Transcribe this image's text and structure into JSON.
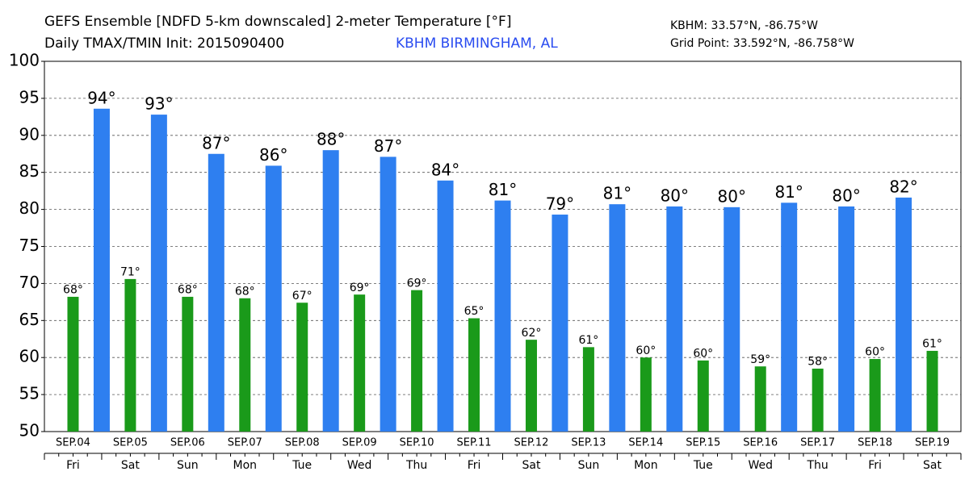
{
  "chart_data": {
    "type": "bar",
    "title": "GEFS Ensemble [NDFD 5-km downscaled] 2-meter Temperature [°F]",
    "subtitle": "Daily TMAX/TMIN Init: 2015090400",
    "station": "KBHM BIRMINGHAM, AL",
    "station_coords": "KBHM: 33.57°N, -86.75°W",
    "grid_point": "Grid Point: 33.592°N, -86.758°W",
    "categories": [
      "SEP.04",
      "SEP.05",
      "SEP.06",
      "SEP.07",
      "SEP.08",
      "SEP.09",
      "SEP.10",
      "SEP.11",
      "SEP.12",
      "SEP.13",
      "SEP.14",
      "SEP.15",
      "SEP.16",
      "SEP.17",
      "SEP.18",
      "SEP.19"
    ],
    "weekdays": [
      "Fri",
      "Sat",
      "Sun",
      "Mon",
      "Tue",
      "Wed",
      "Thu",
      "Fri",
      "Sat",
      "Sun",
      "Mon",
      "Tue",
      "Wed",
      "Thu",
      "Fri",
      "Sat"
    ],
    "series": [
      {
        "color": "#1a9a1a",
        "values": [
          68.2,
          70.6,
          68.2,
          68.0,
          67.4,
          68.5,
          69.1,
          65.3,
          62.4,
          61.4,
          60.0,
          59.6,
          58.8,
          58.5,
          59.8,
          60.9
        ],
        "value_labels": [
          "68°",
          "71°",
          "68°",
          "68°",
          "67°",
          "69°",
          "69°",
          "65°",
          "62°",
          "61°",
          "60°",
          "60°",
          "59°",
          "58°",
          "60°",
          "61°"
        ]
      },
      {
        "color": "#2e7ff0",
        "values": [
          93.6,
          92.8,
          87.5,
          85.9,
          88.0,
          87.1,
          83.9,
          81.2,
          79.3,
          80.7,
          80.4,
          80.3,
          80.9,
          80.4,
          81.6,
          null
        ],
        "value_labels": [
          "94°",
          "93°",
          "87°",
          "86°",
          "88°",
          "87°",
          "84°",
          "81°",
          "79°",
          "81°",
          "80°",
          "80°",
          "81°",
          "80°",
          "82°",
          null
        ]
      }
    ],
    "ylim": [
      50,
      100
    ],
    "yticks": [
      50,
      55,
      60,
      65,
      70,
      75,
      80,
      85,
      90,
      95,
      100
    ],
    "grid": true
  }
}
